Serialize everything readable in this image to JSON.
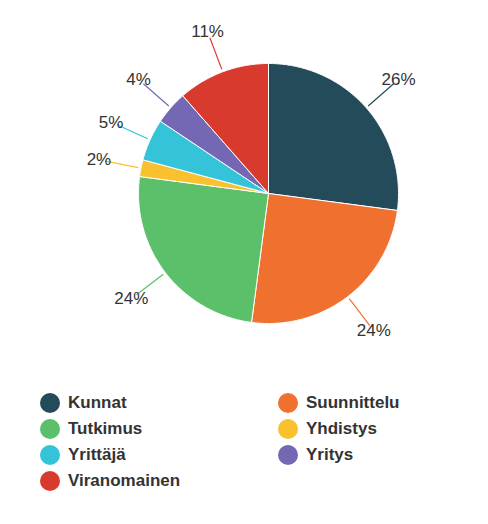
{
  "chart_data": {
    "type": "pie",
    "categories": [
      "Kunnat",
      "Suunnittelu",
      "Tutkimus",
      "Yhdistys",
      "Yrittäjä",
      "Yritys",
      "Viranomainen"
    ],
    "values": [
      26,
      24,
      24,
      2,
      5,
      4,
      11
    ],
    "value_labels": [
      "26%",
      "24%",
      "24%",
      "2%",
      "5%",
      "4%",
      "11%"
    ],
    "colors": [
      "#234b5a",
      "#f07030",
      "#5cbf6a",
      "#f9c12e",
      "#34c3d8",
      "#7468b4",
      "#d93a2e"
    ],
    "data_labels": true,
    "legend": "bottom"
  }
}
